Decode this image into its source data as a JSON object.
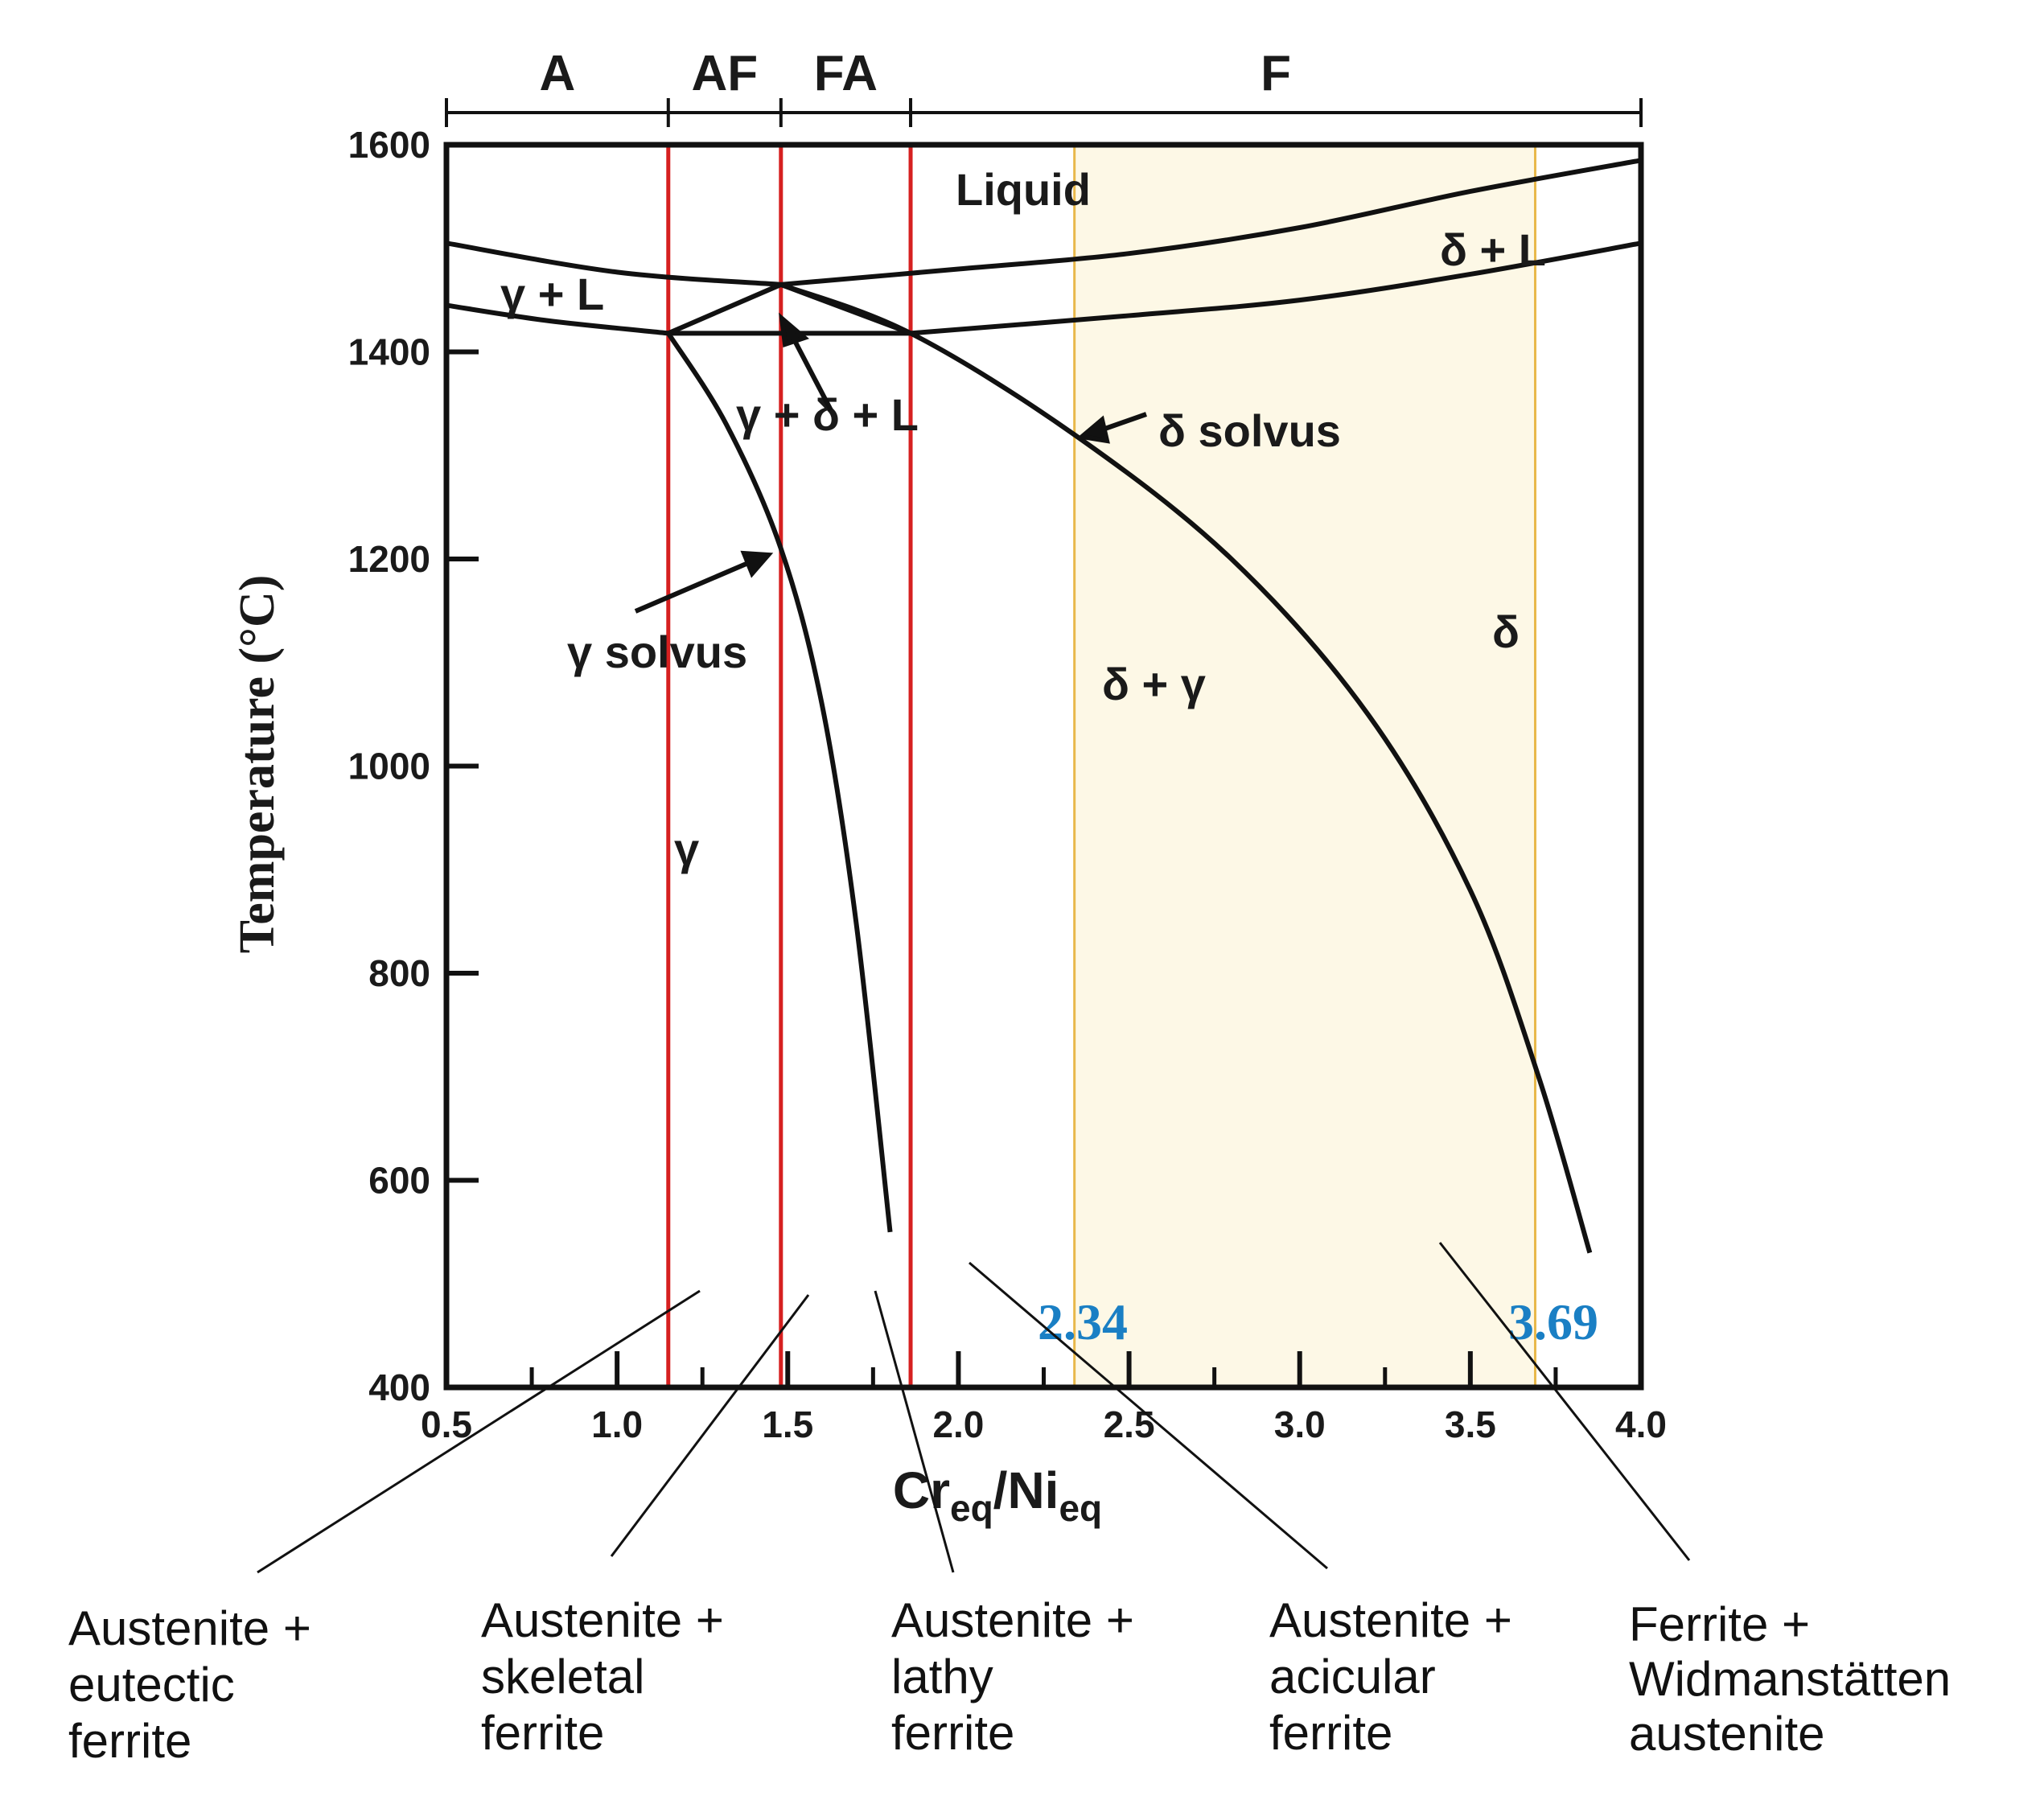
{
  "chart_data": {
    "type": "phase-diagram",
    "xlabel": {
      "main": "Cr",
      "sub1": "eq",
      "mid": "/Ni",
      "sub2": "eq"
    },
    "ylabel": "Temperature (°C)",
    "xlim": [
      0.5,
      4.0
    ],
    "ylim": [
      400,
      1600
    ],
    "x_ticks": [
      "0.5",
      "1.0",
      "1.5",
      "2.0",
      "2.5",
      "3.0",
      "3.5",
      "4.0"
    ],
    "y_ticks": [
      "400",
      "600",
      "800",
      "1000",
      "1200",
      "1400",
      "1600"
    ],
    "solidification_modes": [
      {
        "label": "A",
        "from": 0.5,
        "to": 1.15
      },
      {
        "label": "AF",
        "from": 1.15,
        "to": 1.48
      },
      {
        "label": "FA",
        "from": 1.48,
        "to": 1.86
      },
      {
        "label": "F",
        "from": 1.86,
        "to": 4.0
      }
    ],
    "mode_boundaries": [
      1.15,
      1.48,
      1.86
    ],
    "highlight_range": {
      "from": 2.34,
      "to": 3.69,
      "labels": [
        "2.34",
        "3.69"
      ],
      "color": "#fdf8e6",
      "border": "#e8b84a"
    },
    "curves": {
      "liquidus_gamma": [
        [
          0.5,
          1505
        ],
        [
          1.0,
          1477
        ],
        [
          1.48,
          1465
        ]
      ],
      "liquidus_delta": [
        [
          1.48,
          1465
        ],
        [
          2.0,
          1480
        ],
        [
          2.5,
          1495
        ],
        [
          3.0,
          1520
        ],
        [
          3.5,
          1555
        ],
        [
          4.0,
          1585
        ]
      ],
      "solidus_gamma": [
        [
          0.5,
          1445
        ],
        [
          0.8,
          1430
        ],
        [
          1.15,
          1418
        ]
      ],
      "solidus_delta": [
        [
          1.86,
          1418
        ],
        [
          2.5,
          1435
        ],
        [
          3.0,
          1450
        ],
        [
          3.5,
          1475
        ],
        [
          4.0,
          1505
        ]
      ],
      "eutectic_tie": [
        [
          1.15,
          1418
        ],
        [
          1.86,
          1418
        ]
      ],
      "triangle_left": [
        [
          1.15,
          1418
        ],
        [
          1.48,
          1465
        ]
      ],
      "triangle_right": [
        [
          1.48,
          1465
        ],
        [
          1.86,
          1418
        ]
      ],
      "gamma_solvus": [
        [
          1.15,
          1418
        ],
        [
          1.32,
          1330
        ],
        [
          1.48,
          1210
        ],
        [
          1.6,
          1060
        ],
        [
          1.7,
          850
        ],
        [
          1.8,
          550
        ]
      ],
      "delta_solvus": [
        [
          1.48,
          1465
        ],
        [
          1.86,
          1418
        ],
        [
          2.34,
          1320
        ],
        [
          2.8,
          1200
        ],
        [
          3.2,
          1050
        ],
        [
          3.5,
          880
        ],
        [
          3.7,
          700
        ],
        [
          3.85,
          530
        ]
      ]
    },
    "phase_labels": [
      "Liquid",
      "γ + L",
      "δ + L",
      "γ + δ + L",
      "δ solvus",
      "γ solvus",
      "γ",
      "δ + γ",
      "δ"
    ],
    "microstructures": [
      [
        "Austenite +",
        "eutectic",
        "ferrite"
      ],
      [
        "Austenite +",
        "skeletal",
        "ferrite"
      ],
      [
        "Austenite +",
        "lathy",
        "ferrite"
      ],
      [
        "Austenite +",
        "acicular",
        "ferrite"
      ],
      [
        "Ferrite +",
        "Widmanstätten",
        "austenite"
      ]
    ],
    "colors": {
      "mode_lines": "#d62020",
      "curves": "#111111",
      "markers": "#1a7fc4"
    }
  }
}
